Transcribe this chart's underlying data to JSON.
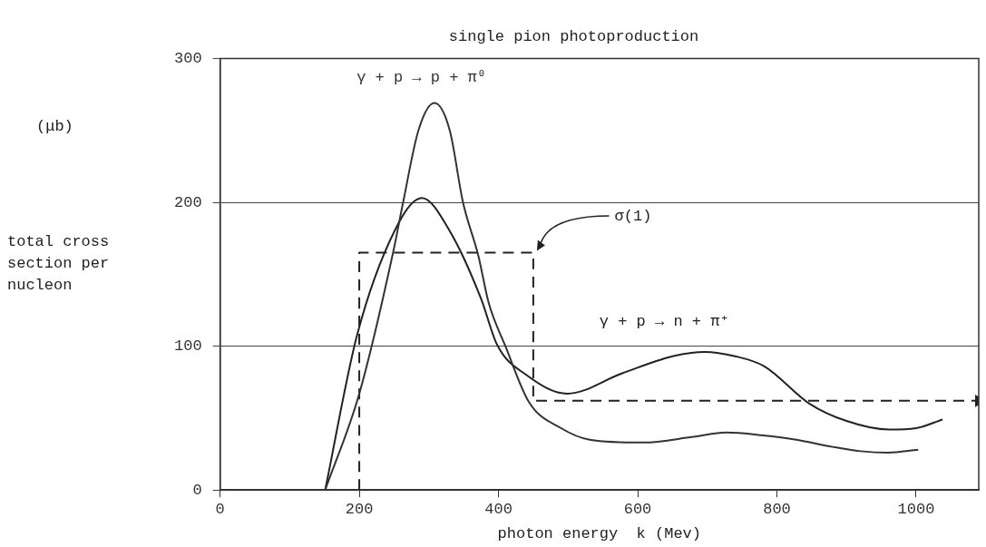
{
  "chart_data": {
    "type": "line",
    "title": "single pion photoproduction",
    "xlabel": "photon energy  k (Mev)",
    "ylabel": "total cross section per nucleon",
    "annotations": [
      "(μb)"
    ],
    "xlim": [
      0,
      1090
    ],
    "xticks": [
      0,
      200,
      400,
      600,
      800,
      1000
    ],
    "ylim": [
      0,
      300
    ],
    "yticks": [
      0,
      100,
      200,
      300
    ],
    "grid": "y",
    "legend": false,
    "marker": "none",
    "series": [
      {
        "name": "γ + p → p + π⁰",
        "color": "#333333",
        "x": [
          151,
          200,
          249,
          263,
          285,
          308,
          330,
          349,
          371,
          386,
          410,
          444,
          490,
          531,
          608,
          680,
          727,
          780,
          828,
          880,
          920,
          960,
          1003
        ],
        "values": [
          0,
          67,
          166,
          200,
          250,
          269,
          250,
          200,
          163,
          130,
          100,
          61,
          43,
          35,
          33,
          37,
          40,
          38,
          35,
          30,
          27,
          26,
          28
        ]
      },
      {
        "name": "γ + p → n + π⁺",
        "color": "#222222",
        "x": [
          151,
          197,
          257,
          290,
          330,
          375,
          398,
          440,
          499,
          577,
          650,
          696,
          740,
          782,
          847,
          900,
          961,
          1000,
          1038
        ],
        "values": [
          0,
          108,
          186,
          203,
          180,
          133,
          101,
          80,
          67,
          81,
          93,
          96,
          93,
          86,
          60,
          48,
          42,
          43,
          49
        ]
      },
      {
        "name": "σ(1)",
        "color": "#222222",
        "line_style": "dashed",
        "x": [
          200,
          200,
          450,
          450,
          1090
        ],
        "values": [
          0,
          165,
          165,
          62,
          62
        ]
      }
    ]
  }
}
